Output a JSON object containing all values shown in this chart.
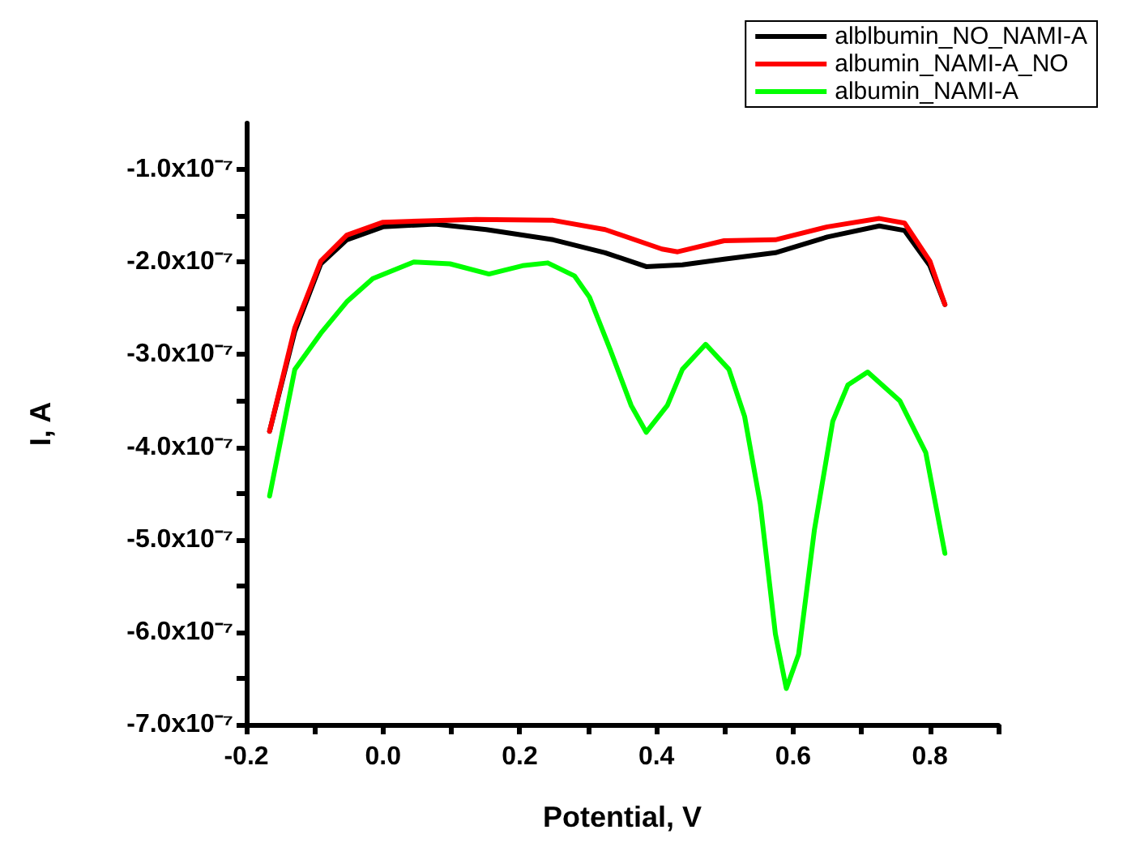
{
  "chart_data": {
    "type": "line",
    "xlabel": "Potential, V",
    "ylabel": "I, A",
    "legend": "top right",
    "grid": false,
    "marker": "none",
    "line_style": "solid",
    "xlim": [
      -0.2,
      0.9
    ],
    "ylim": [
      -7e-07,
      -5e-08
    ],
    "xticks": [
      {
        "value": -0.2,
        "label": "-0.2"
      },
      {
        "value": -0.1,
        "label": null
      },
      {
        "value": 0,
        "label": "0.0"
      },
      {
        "value": 0.1,
        "label": null
      },
      {
        "value": 0.2,
        "label": "0.2"
      },
      {
        "value": 0.3,
        "label": null
      },
      {
        "value": 0.4,
        "label": "0.4"
      },
      {
        "value": 0.5,
        "label": null
      },
      {
        "value": 0.6,
        "label": "0.6"
      },
      {
        "value": 0.7,
        "label": null
      },
      {
        "value": 0.8,
        "label": "0.8"
      },
      {
        "value": 0.9,
        "label": null
      }
    ],
    "yticks": [
      {
        "value": -7e-07,
        "label": "-7.0x10⁻⁷"
      },
      {
        "value": -6.5e-07,
        "label": null
      },
      {
        "value": -6e-07,
        "label": "-6.0x10⁻⁷"
      },
      {
        "value": -5.5e-07,
        "label": null
      },
      {
        "value": -5e-07,
        "label": "-5.0x10⁻⁷"
      },
      {
        "value": -4.5e-07,
        "label": null
      },
      {
        "value": -4e-07,
        "label": "-4.0x10⁻⁷"
      },
      {
        "value": -3.5e-07,
        "label": null
      },
      {
        "value": -3e-07,
        "label": "-3.0x10⁻⁷"
      },
      {
        "value": -2.5e-07,
        "label": null
      },
      {
        "value": -2e-07,
        "label": "-2.0x10⁻⁷"
      },
      {
        "value": -1.5e-07,
        "label": null
      },
      {
        "value": -1e-07,
        "label": "-1.0x10⁻⁷"
      }
    ],
    "series": [
      {
        "name": "alblbumin_NO_NAMI-A",
        "color": "#000000",
        "x": [
          -0.166,
          -0.129,
          -0.091,
          -0.053,
          0.0,
          0.076,
          0.151,
          0.249,
          0.325,
          0.385,
          0.438,
          0.499,
          0.574,
          0.65,
          0.726,
          0.763,
          0.8,
          0.822
        ],
        "values": [
          -3.83e-07,
          -2.75e-07,
          -2.02e-07,
          -1.76e-07,
          -1.62e-07,
          -1.59e-07,
          -1.65e-07,
          -1.76e-07,
          -1.9e-07,
          -2.05e-07,
          -2.03e-07,
          -1.97e-07,
          -1.9e-07,
          -1.73e-07,
          -1.61e-07,
          -1.66e-07,
          -2.04e-07,
          -2.46e-07
        ]
      },
      {
        "name": "albumin_NAMI-A_NO",
        "color": "#ff0000",
        "x": [
          -0.166,
          -0.129,
          -0.091,
          -0.053,
          0.0,
          0.136,
          0.249,
          0.325,
          0.408,
          0.431,
          0.499,
          0.574,
          0.65,
          0.726,
          0.763,
          0.8,
          0.822
        ],
        "values": [
          -3.83e-07,
          -2.71e-07,
          -1.99e-07,
          -1.71e-07,
          -1.57e-07,
          -1.54e-07,
          -1.55e-07,
          -1.65e-07,
          -1.86e-07,
          -1.89e-07,
          -1.77e-07,
          -1.76e-07,
          -1.62e-07,
          -1.53e-07,
          -1.58e-07,
          -1.99e-07,
          -2.46e-07
        ]
      },
      {
        "name": "albumin_NAMI-A",
        "color": "#00ff00",
        "x": [
          -0.166,
          -0.129,
          -0.091,
          -0.053,
          -0.015,
          0.045,
          0.098,
          0.155,
          0.204,
          0.241,
          0.28,
          0.302,
          0.332,
          0.363,
          0.385,
          0.416,
          0.438,
          0.472,
          0.506,
          0.529,
          0.552,
          0.574,
          0.59,
          0.608,
          0.631,
          0.658,
          0.68,
          0.709,
          0.756,
          0.794,
          0.822
        ],
        "values": [
          -4.53e-07,
          -3.16e-07,
          -2.77e-07,
          -2.43e-07,
          -2.18e-07,
          -2e-07,
          -2.02e-07,
          -2.13e-07,
          -2.04e-07,
          -2.01e-07,
          -2.15e-07,
          -2.38e-07,
          -2.94e-07,
          -3.55e-07,
          -3.84e-07,
          -3.55e-07,
          -3.16e-07,
          -2.89e-07,
          -3.16e-07,
          -3.67e-07,
          -4.62e-07,
          -6.02e-07,
          -6.61e-07,
          -6.24e-07,
          -4.9e-07,
          -3.72e-07,
          -3.33e-07,
          -3.19e-07,
          -3.5e-07,
          -4.06e-07,
          -5.15e-07
        ]
      }
    ]
  }
}
